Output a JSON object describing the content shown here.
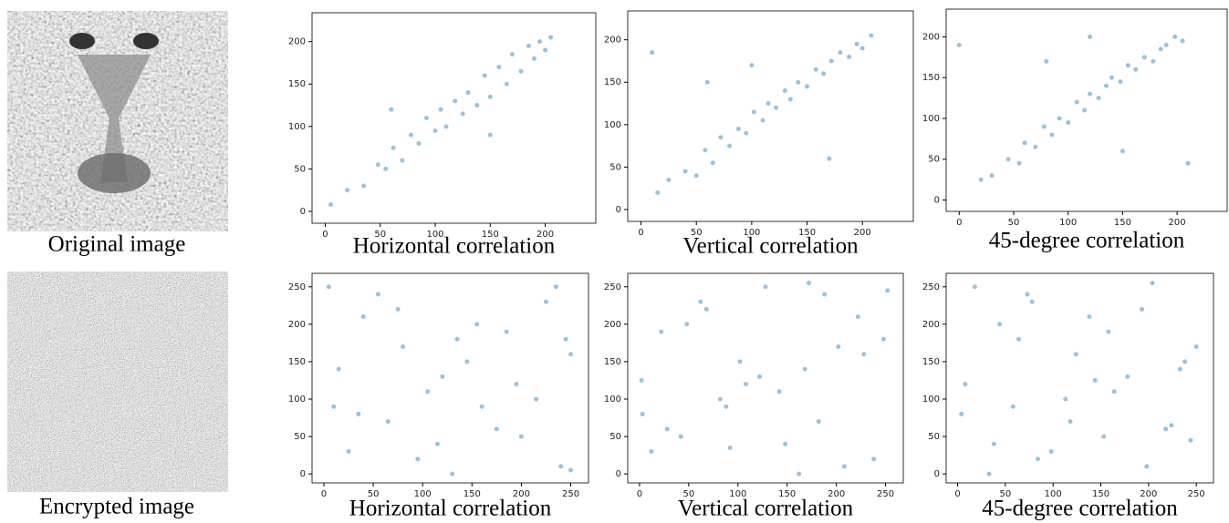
{
  "images": [
    {
      "caption": "Original image"
    },
    {
      "caption": "Encrypted image"
    }
  ],
  "chart_data": [
    {
      "type": "scatter",
      "xlabel": "Horizontal correlation",
      "color": "#1f77b4",
      "x": [
        5,
        20,
        35,
        48,
        55,
        62,
        70,
        78,
        85,
        92,
        100,
        105,
        110,
        118,
        125,
        130,
        138,
        145,
        150,
        158,
        165,
        170,
        178,
        185,
        190,
        195,
        200,
        205,
        60,
        150
      ],
      "y": [
        8,
        25,
        30,
        55,
        50,
        75,
        60,
        90,
        80,
        110,
        95,
        120,
        100,
        130,
        115,
        140,
        125,
        160,
        135,
        170,
        150,
        185,
        165,
        195,
        180,
        200,
        190,
        205,
        120,
        90
      ],
      "xlim": [
        -12,
        246
      ],
      "ylim": [
        -14,
        234
      ],
      "xticks": [
        0,
        50,
        100,
        150,
        200
      ],
      "yticks": [
        0,
        50,
        100,
        150,
        200
      ]
    },
    {
      "type": "scatter",
      "xlabel": "Vertical correlation",
      "color": "#1f77b4",
      "x": [
        15,
        25,
        40,
        50,
        58,
        65,
        72,
        80,
        88,
        95,
        102,
        110,
        115,
        122,
        130,
        135,
        142,
        150,
        158,
        165,
        172,
        180,
        188,
        195,
        200,
        208,
        10,
        100,
        170,
        60
      ],
      "y": [
        20,
        35,
        45,
        40,
        70,
        55,
        85,
        75,
        95,
        90,
        115,
        105,
        125,
        120,
        140,
        130,
        150,
        145,
        165,
        160,
        175,
        185,
        180,
        195,
        190,
        205,
        185,
        170,
        60,
        150
      ],
      "xlim": [
        -12,
        246
      ],
      "ylim": [
        -14,
        234
      ],
      "xticks": [
        0,
        50,
        100,
        150,
        200
      ],
      "yticks": [
        0,
        50,
        100,
        150,
        200
      ]
    },
    {
      "type": "scatter",
      "xlabel": "45-degree correlation",
      "color": "#1f77b4",
      "x": [
        20,
        30,
        45,
        55,
        60,
        70,
        78,
        85,
        92,
        100,
        108,
        115,
        120,
        128,
        135,
        140,
        148,
        155,
        162,
        170,
        178,
        185,
        190,
        198,
        205,
        0,
        210,
        80,
        150,
        120
      ],
      "y": [
        25,
        30,
        50,
        45,
        70,
        65,
        90,
        80,
        100,
        95,
        120,
        110,
        130,
        125,
        140,
        150,
        145,
        165,
        160,
        175,
        170,
        185,
        190,
        200,
        195,
        190,
        45,
        170,
        60,
        200
      ],
      "xlim": [
        -12,
        246
      ],
      "ylim": [
        -14,
        234
      ],
      "xticks": [
        0,
        50,
        100,
        150,
        200
      ],
      "yticks": [
        0,
        50,
        100,
        150,
        200
      ]
    },
    {
      "type": "scatter",
      "xlabel": "Horizontal correlation",
      "color": "#1f77b4",
      "x": [
        5,
        40,
        80,
        120,
        160,
        200,
        240,
        25,
        65,
        105,
        145,
        185,
        225,
        250,
        15,
        55,
        95,
        135,
        175,
        215,
        250,
        35,
        75,
        115,
        155,
        195,
        235,
        10,
        130,
        245
      ],
      "y": [
        250,
        210,
        170,
        130,
        90,
        50,
        10,
        30,
        70,
        110,
        150,
        190,
        230,
        5,
        140,
        240,
        20,
        180,
        60,
        100,
        160,
        80,
        220,
        40,
        200,
        120,
        250,
        90,
        0,
        180
      ],
      "xlim": [
        -12,
        268
      ],
      "ylim": [
        -12,
        268
      ],
      "xticks": [
        0,
        50,
        100,
        150,
        200,
        250
      ],
      "yticks": [
        0,
        50,
        100,
        150,
        200,
        250
      ]
    },
    {
      "type": "scatter",
      "xlabel": "Vertical correlation",
      "color": "#1f77b4",
      "x": [
        12,
        48,
        88,
        128,
        168,
        208,
        248,
        28,
        68,
        108,
        148,
        188,
        228,
        3,
        142,
        238,
        22,
        182,
        62,
        102,
        162,
        82,
        222,
        42,
        202,
        122,
        252,
        92,
        2,
        172
      ],
      "y": [
        30,
        200,
        90,
        250,
        140,
        10,
        180,
        60,
        220,
        120,
        40,
        240,
        160,
        80,
        110,
        20,
        190,
        70,
        230,
        150,
        0,
        100,
        210,
        50,
        170,
        130,
        245,
        35,
        125,
        255
      ],
      "xlim": [
        -12,
        268
      ],
      "ylim": [
        -12,
        268
      ],
      "xticks": [
        0,
        50,
        100,
        150,
        200,
        250
      ],
      "yticks": [
        0,
        50,
        100,
        150,
        200,
        250
      ]
    },
    {
      "type": "scatter",
      "xlabel": "45-degree correlation",
      "color": "#1f77b4",
      "x": [
        8,
        38,
        78,
        118,
        158,
        198,
        238,
        18,
        58,
        98,
        138,
        178,
        218,
        250,
        33,
        73,
        113,
        153,
        193,
        233,
        4,
        44,
        84,
        124,
        164,
        204,
        244,
        64,
        144,
        224
      ],
      "y": [
        120,
        40,
        230,
        70,
        190,
        10,
        150,
        250,
        90,
        30,
        210,
        130,
        60,
        170,
        0,
        240,
        100,
        50,
        220,
        140,
        80,
        200,
        20,
        160,
        110,
        255,
        45,
        180,
        125,
        65
      ],
      "xlim": [
        -12,
        268
      ],
      "ylim": [
        -12,
        268
      ],
      "xticks": [
        0,
        50,
        100,
        150,
        200,
        250
      ],
      "yticks": [
        0,
        50,
        100,
        150,
        200,
        250
      ]
    }
  ]
}
